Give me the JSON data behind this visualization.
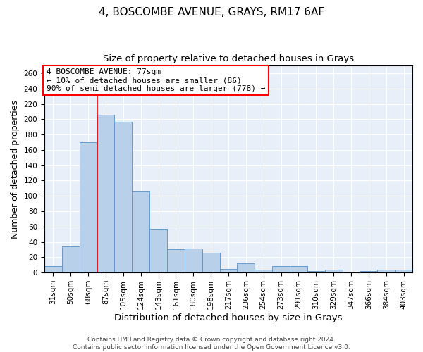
{
  "title": "4, BOSCOMBE AVENUE, GRAYS, RM17 6AF",
  "subtitle": "Size of property relative to detached houses in Grays",
  "xlabel": "Distribution of detached houses by size in Grays",
  "ylabel": "Number of detached properties",
  "categories": [
    "31sqm",
    "50sqm",
    "68sqm",
    "87sqm",
    "105sqm",
    "124sqm",
    "143sqm",
    "161sqm",
    "180sqm",
    "198sqm",
    "217sqm",
    "236sqm",
    "254sqm",
    "273sqm",
    "291sqm",
    "310sqm",
    "329sqm",
    "347sqm",
    "366sqm",
    "384sqm",
    "403sqm"
  ],
  "values": [
    8,
    34,
    170,
    206,
    197,
    106,
    57,
    30,
    31,
    26,
    5,
    12,
    4,
    8,
    8,
    2,
    4,
    0,
    2,
    4,
    4
  ],
  "bar_color": "#b8d0ea",
  "bar_edge_color": "#6699cc",
  "vline_pos": 2.5,
  "vline_color": "red",
  "annotation_line1": "4 BOSCOMBE AVENUE: 77sqm",
  "annotation_line2": "← 10% of detached houses are smaller (86)",
  "annotation_line3": "90% of semi-detached houses are larger (778) →",
  "annotation_box_facecolor": "white",
  "annotation_box_edgecolor": "red",
  "ylim": [
    0,
    270
  ],
  "yticks": [
    0,
    20,
    40,
    60,
    80,
    100,
    120,
    140,
    160,
    180,
    200,
    220,
    240,
    260
  ],
  "background_color": "#e8eff8",
  "grid_color": "white",
  "title_fontsize": 11,
  "subtitle_fontsize": 9.5,
  "ylabel_fontsize": 9,
  "xlabel_fontsize": 9.5,
  "tick_fontsize": 7.5,
  "annotation_fontsize": 8,
  "footnote": "Contains HM Land Registry data © Crown copyright and database right 2024.\nContains public sector information licensed under the Open Government Licence v3.0.",
  "footnote_fontsize": 6.5
}
